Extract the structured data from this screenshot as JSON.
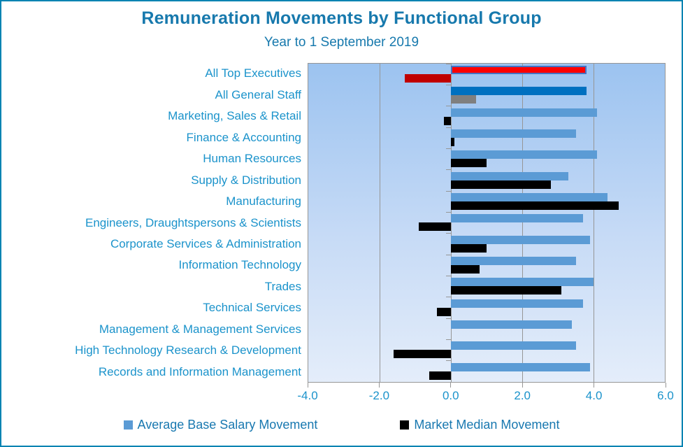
{
  "title": "Remuneration Movements by Functional Group",
  "subtitle": "Year to 1 September 2019",
  "colors": {
    "frame_border": "#0083B2",
    "title_text": "#1779AD",
    "label_text": "#1B93CB",
    "grid": "#969696",
    "plot_bg_top": "#9CC3F0",
    "plot_bg_bottom": "#E4EDFA",
    "highlight_bar_border": "#4472C4"
  },
  "chart_data": {
    "type": "bar",
    "orientation": "horizontal",
    "title": "Remuneration Movements by Functional Group",
    "subtitle": "Year to 1 September 2019",
    "xlim": [
      -4.0,
      6.0
    ],
    "xticks": [
      -4.0,
      -2.0,
      0.0,
      2.0,
      4.0,
      6.0
    ],
    "xtick_labels": [
      "-4.0",
      "-2.0",
      "0.0",
      "2.0",
      "4.0",
      "6.0"
    ],
    "gridlines": [
      -2.0,
      0.0,
      2.0,
      4.0
    ],
    "grid_on": true,
    "legend_position": "bottom",
    "categories": [
      "All Top Executives",
      "All General Staff",
      "Marketing, Sales & Retail",
      "Finance & Accounting",
      "Human Resources",
      "Supply & Distribution",
      "Manufacturing",
      "Engineers, Draughtspersons & Scientists",
      "Corporate Services & Administration",
      "Information Technology",
      "Trades",
      "Technical Services",
      "Management & Management Services",
      "High Technology Research & Development",
      "Records and Information Management"
    ],
    "series": [
      {
        "name": "Average Base Salary Movement",
        "legend_color": "#5B9BD5",
        "values": [
          3.8,
          3.8,
          4.1,
          3.5,
          4.1,
          3.3,
          4.4,
          3.7,
          3.9,
          3.5,
          4.0,
          3.7,
          3.4,
          3.5,
          3.9
        ],
        "point_colors": [
          "#FF0000",
          "#0070C0",
          "#5B9BD5",
          "#5B9BD5",
          "#5B9BD5",
          "#5B9BD5",
          "#5B9BD5",
          "#5B9BD5",
          "#5B9BD5",
          "#5B9BD5",
          "#5B9BD5",
          "#5B9BD5",
          "#5B9BD5",
          "#5B9BD5",
          "#5B9BD5"
        ],
        "point_borders": [
          "#4472C4",
          null,
          null,
          null,
          null,
          null,
          null,
          null,
          null,
          null,
          null,
          null,
          null,
          null,
          null
        ]
      },
      {
        "name": "Market Median Movement",
        "legend_color": "#000000",
        "values": [
          -1.3,
          0.7,
          -0.2,
          0.1,
          1.0,
          2.8,
          4.7,
          -0.9,
          1.0,
          0.8,
          3.1,
          -0.4,
          0.0,
          -1.6,
          -0.6
        ],
        "point_colors": [
          "#C00000",
          "#7F7F7F",
          "#000000",
          "#000000",
          "#000000",
          "#000000",
          "#000000",
          "#000000",
          "#000000",
          "#000000",
          "#000000",
          "#000000",
          "#000000",
          "#000000",
          "#000000"
        ],
        "point_borders": [
          null,
          null,
          null,
          null,
          null,
          null,
          null,
          null,
          null,
          null,
          null,
          null,
          null,
          null,
          null
        ]
      }
    ]
  }
}
